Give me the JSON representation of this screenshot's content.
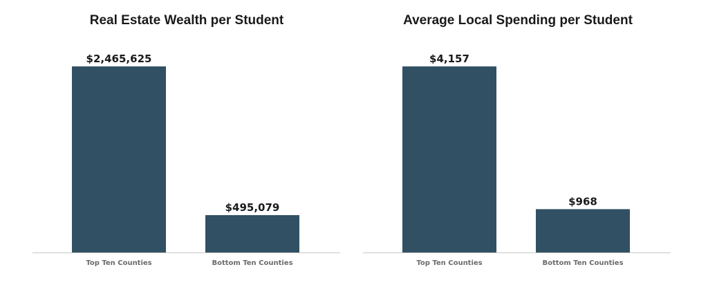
{
  "colors": {
    "bar": "#325063",
    "text": "#1a1a1a",
    "tick_text": "#6b6b6b",
    "axis": "#c8c8c8"
  },
  "chart_data": [
    {
      "type": "bar",
      "title": "Real Estate Wealth per Student",
      "xlabel": "",
      "ylabel": "",
      "categories": [
        "Top Ten Counties",
        "Bottom Ten Counties"
      ],
      "values": [
        2465625,
        495079
      ],
      "value_labels": [
        "$2,465,625",
        "$495,079"
      ],
      "ylim": [
        0,
        2465625
      ],
      "grid": false
    },
    {
      "type": "bar",
      "title": "Average Local Spending per Student",
      "xlabel": "",
      "ylabel": "",
      "categories": [
        "Top Ten Counties",
        "Bottom Ten Counties"
      ],
      "values": [
        4157,
        968
      ],
      "value_labels": [
        "$4,157",
        "$968"
      ],
      "ylim": [
        0,
        4157
      ],
      "grid": false
    }
  ]
}
